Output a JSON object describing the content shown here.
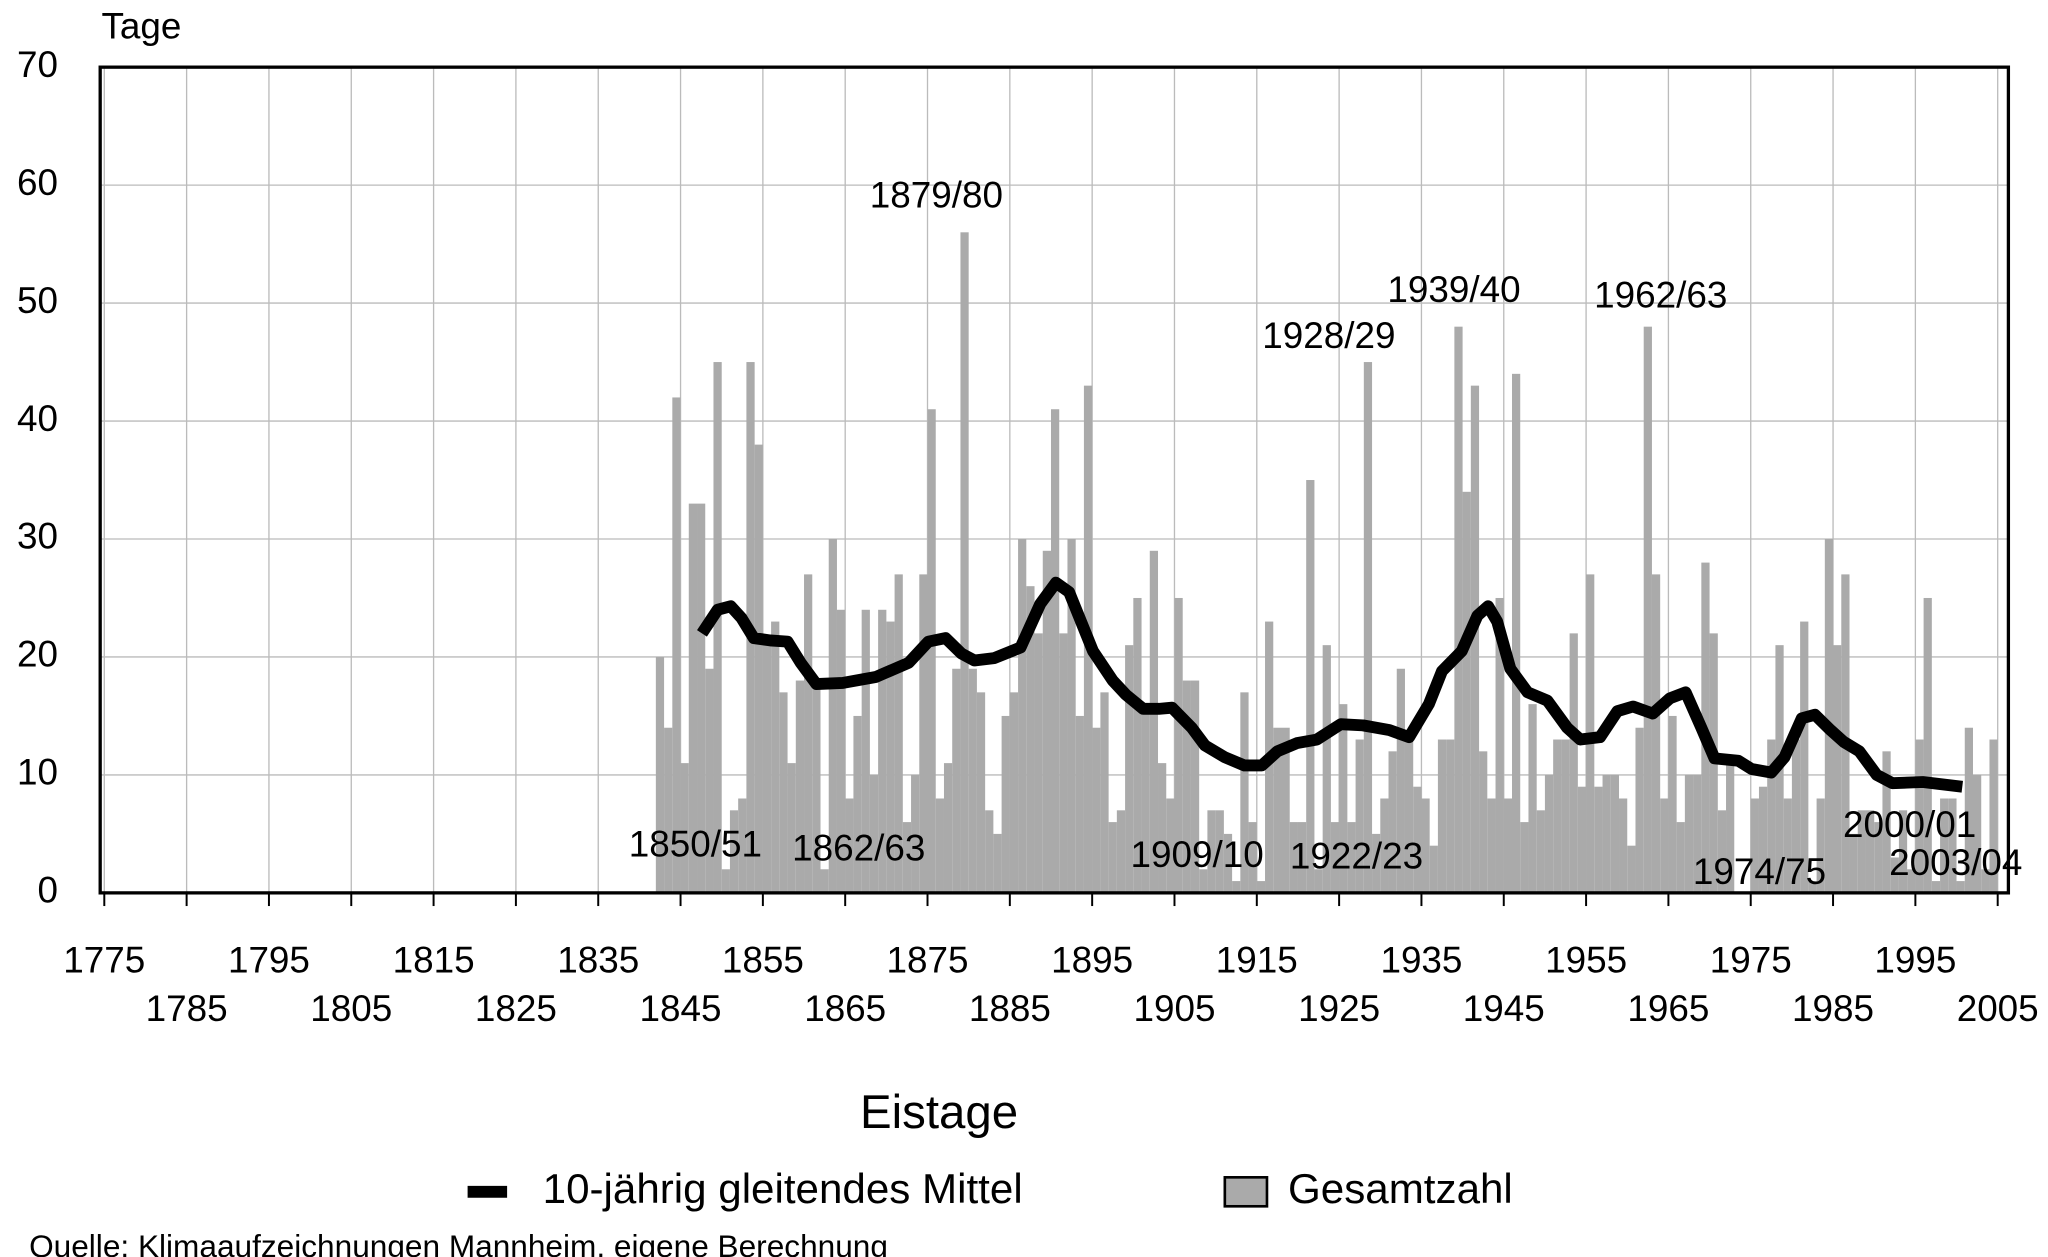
{
  "chart_data": {
    "type": "bar",
    "title": "Eistage",
    "y_label": "Tage",
    "source": "Quelle: Klimaaufzeichnungen Mannheim, eigene Berechnung",
    "xlim": [
      1774.5,
      2006.3
    ],
    "ylim": [
      0,
      70
    ],
    "xticks": [
      1775,
      1785,
      1795,
      1805,
      1815,
      1825,
      1835,
      1845,
      1855,
      1865,
      1875,
      1885,
      1895,
      1905,
      1915,
      1925,
      1935,
      1945,
      1955,
      1965,
      1975,
      1985,
      1995,
      2005
    ],
    "yticks": [
      0,
      10,
      20,
      30,
      40,
      50,
      60,
      70
    ],
    "grid": true,
    "series": [
      {
        "name": "10-jährig gleitendes Mittel",
        "type": "line",
        "color": "#000000",
        "x": [
          1847.6,
          1849.5,
          1851.1,
          1852.4,
          1853.9,
          1855.9,
          1858.0,
          1859.6,
          1861.5,
          1864.7,
          1868.7,
          1872.7,
          1875.1,
          1877.2,
          1879.1,
          1880.7,
          1883.1,
          1886.3,
          1888.7,
          1890.6,
          1892.2,
          1895.1,
          1897.5,
          1899.1,
          1901.2,
          1903.1,
          1904.7,
          1907.1,
          1908.7,
          1911.1,
          1913.5,
          1915.6,
          1917.5,
          1919.9,
          1922.3,
          1925.2,
          1927.9,
          1931.1,
          1933.5,
          1935.9,
          1937.5,
          1939.9,
          1941.8,
          1943.1,
          1944.2,
          1945.8,
          1947.9,
          1950.3,
          1952.7,
          1954.3,
          1956.7,
          1958.8,
          1960.7,
          1963.1,
          1965.2,
          1967.1,
          1969.0,
          1970.6,
          1973.5,
          1975.1,
          1977.5,
          1979.1,
          1981.2,
          1982.8,
          1984.7,
          1986.3,
          1988.2,
          1990.3,
          1992.2,
          1995.9,
          2000.7
        ],
        "values": [
          22,
          24,
          24.3,
          23.3,
          21.6,
          21.4,
          21.3,
          19.5,
          17.7,
          17.8,
          18.3,
          19.5,
          21.3,
          21.6,
          20.3,
          19.7,
          19.9,
          20.8,
          24.5,
          26.3,
          25.5,
          20.5,
          18,
          16.8,
          15.6,
          15.6,
          15.7,
          14,
          12.5,
          11.5,
          10.8,
          10.8,
          12,
          12.7,
          13,
          14.3,
          14.2,
          13.8,
          13.2,
          16,
          18.8,
          20.5,
          23.5,
          24.3,
          23,
          19,
          17,
          16.3,
          14,
          13,
          13.2,
          15.4,
          15.8,
          15.2,
          16.5,
          17,
          14,
          11.4,
          11.2,
          10.5,
          10.2,
          11.5,
          14.8,
          15.1,
          13.8,
          12.8,
          12,
          10,
          9.3,
          9.4,
          9
        ]
      },
      {
        "name": "Gesamtzahl",
        "type": "bar",
        "color": "#aaaaaa",
        "x": [
          1842,
          1843,
          1844,
          1845,
          1846,
          1847,
          1848,
          1849,
          1850,
          1851,
          1852,
          1853,
          1854,
          1855,
          1856,
          1857,
          1858,
          1859,
          1860,
          1861,
          1862,
          1863,
          1864,
          1865,
          1866,
          1867,
          1868,
          1869,
          1870,
          1871,
          1872,
          1873,
          1874,
          1875,
          1876,
          1877,
          1878,
          1879,
          1880,
          1881,
          1882,
          1883,
          1884,
          1885,
          1886,
          1887,
          1888,
          1889,
          1890,
          1891,
          1892,
          1893,
          1894,
          1895,
          1896,
          1897,
          1898,
          1899,
          1900,
          1901,
          1902,
          1903,
          1904,
          1905,
          1906,
          1907,
          1908,
          1909,
          1910,
          1911,
          1912,
          1913,
          1914,
          1915,
          1916,
          1917,
          1918,
          1919,
          1920,
          1921,
          1922,
          1923,
          1924,
          1925,
          1926,
          1927,
          1928,
          1929,
          1930,
          1931,
          1932,
          1933,
          1934,
          1935,
          1936,
          1937,
          1938,
          1939,
          1940,
          1941,
          1942,
          1943,
          1944,
          1945,
          1946,
          1947,
          1948,
          1949,
          1950,
          1951,
          1952,
          1953,
          1954,
          1955,
          1956,
          1957,
          1958,
          1959,
          1960,
          1961,
          1962,
          1963,
          1964,
          1965,
          1966,
          1967,
          1968,
          1969,
          1970,
          1971,
          1972,
          1973,
          1974,
          1975,
          1976,
          1977,
          1978,
          1979,
          1980,
          1981,
          1982,
          1983,
          1984,
          1985,
          1986,
          1987,
          1988,
          1989,
          1990,
          1991,
          1992,
          1993,
          1994,
          1995,
          1996,
          1997,
          1998,
          1999,
          2000,
          2001,
          2002,
          2003,
          2004
        ],
        "values": [
          20,
          14,
          42,
          11,
          33,
          33,
          19,
          45,
          2,
          7,
          8,
          45,
          38,
          21,
          23,
          17,
          11,
          18,
          27,
          18,
          2,
          30,
          24,
          8,
          15,
          24,
          10,
          24,
          23,
          27,
          6,
          10,
          27,
          41,
          8,
          11,
          19,
          56,
          19,
          17,
          7,
          5,
          15,
          17,
          30,
          26,
          22,
          29,
          41,
          22,
          30,
          15,
          43,
          14,
          17,
          6,
          7,
          21,
          25,
          16,
          29,
          11,
          8,
          25,
          18,
          18,
          2,
          7,
          7,
          5,
          1,
          17,
          6,
          1,
          23,
          14,
          14,
          6,
          6,
          35,
          2,
          21,
          6,
          16,
          6,
          13,
          45,
          5,
          8,
          12,
          19,
          13,
          9,
          8,
          4,
          13,
          13,
          48,
          34,
          43,
          12,
          8,
          25,
          8,
          44,
          6,
          16,
          7,
          10,
          13,
          13,
          22,
          9,
          27,
          9,
          10,
          10,
          8,
          4,
          14,
          48,
          27,
          8,
          15,
          6,
          10,
          10,
          28,
          22,
          7,
          11,
          0,
          0,
          8,
          9,
          13,
          21,
          8,
          13,
          23,
          1,
          8,
          30,
          21,
          27,
          5,
          7,
          7,
          6,
          12,
          3,
          7,
          2,
          13,
          25,
          1,
          8,
          8,
          1,
          14,
          10,
          2,
          13
        ]
      }
    ],
    "annotations": [
      "1850/51",
      "1862/63",
      "1879/80",
      "1909/10",
      "1922/23",
      "1928/29",
      "1939/40",
      "1962/63",
      "1974/75",
      "2000/01",
      "2003/04"
    ]
  }
}
